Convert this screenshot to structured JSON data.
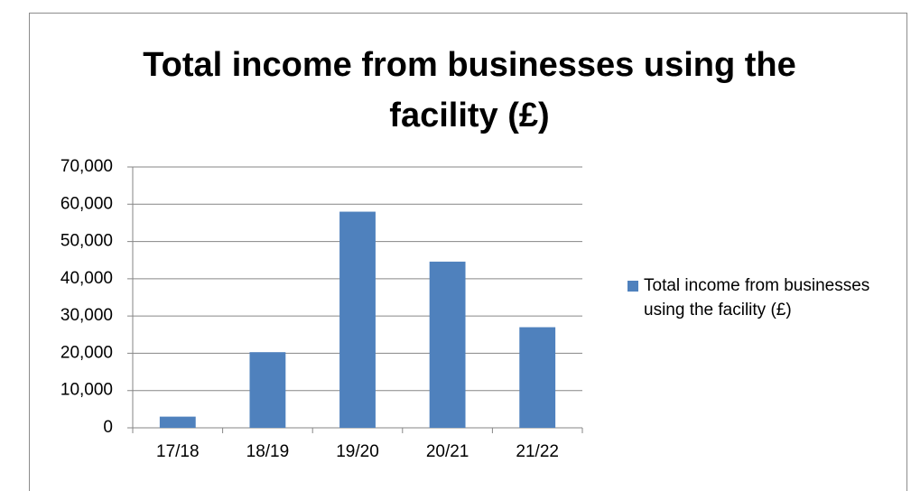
{
  "chart_data": {
    "type": "bar",
    "title": "Total income from businesses using the facility (£)",
    "categories": [
      "17/18",
      "18/19",
      "19/20",
      "20/21",
      "21/22"
    ],
    "series": [
      {
        "name": "Total income from businesses using the facility (£)",
        "color": "#4f81bd",
        "values": [
          3000,
          20300,
          58000,
          44600,
          27000
        ]
      }
    ],
    "ylim": [
      0,
      70000
    ],
    "yticks": [
      0,
      {
        "value": 10000,
        "label": "10,000"
      },
      {
        "value": 20000,
        "label": "20,000"
      },
      {
        "value": 30000,
        "label": "30,000"
      },
      {
        "value": 40000,
        "label": "40,000"
      },
      {
        "value": 50000,
        "label": "50,000"
      },
      {
        "value": 60000,
        "label": "60,000"
      },
      {
        "value": 70000,
        "label": "70,000"
      }
    ],
    "grid": true,
    "legend": "right"
  }
}
